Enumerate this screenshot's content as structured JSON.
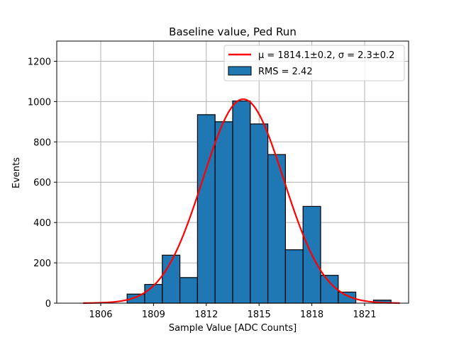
{
  "chart_data": {
    "type": "bar",
    "title": "Baseline value, Ped Run",
    "xlabel": "Sample Value [ADC Counts]",
    "ylabel": "Events",
    "xlim": [
      1803.5,
      1823.5
    ],
    "ylim": [
      0,
      1300
    ],
    "xticks": [
      1806,
      1809,
      1812,
      1815,
      1818,
      1821
    ],
    "yticks": [
      0,
      200,
      400,
      600,
      800,
      1000,
      1200
    ],
    "grid": true,
    "legend_position": "top-right",
    "colors": {
      "bars": "#1f77b4",
      "fit": "#ff0000",
      "grid": "#b0b0b0"
    },
    "histogram": {
      "name": "RMS = 2.42",
      "bin_width": 1,
      "bins": [
        {
          "x": 1808,
          "count": 45
        },
        {
          "x": 1809,
          "count": 93
        },
        {
          "x": 1810,
          "count": 238
        },
        {
          "x": 1811,
          "count": 127
        },
        {
          "x": 1812,
          "count": 935
        },
        {
          "x": 1813,
          "count": 900
        },
        {
          "x": 1814,
          "count": 1003
        },
        {
          "x": 1815,
          "count": 889
        },
        {
          "x": 1816,
          "count": 737
        },
        {
          "x": 1817,
          "count": 265
        },
        {
          "x": 1818,
          "count": 480
        },
        {
          "x": 1819,
          "count": 138
        },
        {
          "x": 1820,
          "count": 55
        },
        {
          "x": 1822,
          "count": 15
        }
      ]
    },
    "fit": {
      "name": "μ = 1814.1±0.2, σ = 2.3±0.2",
      "mu": 1814.1,
      "sigma": 2.3,
      "amplitude": 1012,
      "x_range": [
        1805,
        1823
      ]
    }
  }
}
